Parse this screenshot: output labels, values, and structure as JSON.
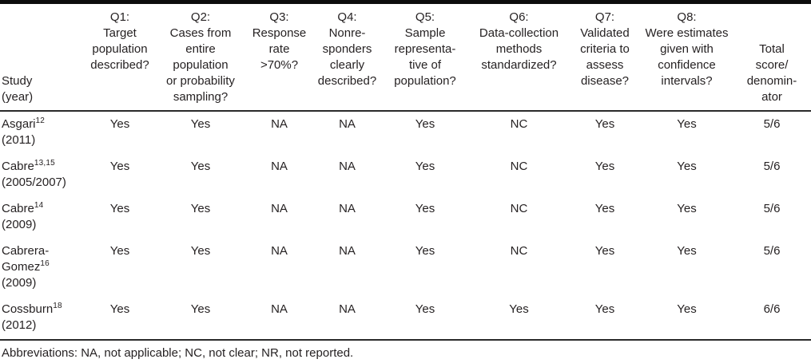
{
  "table": {
    "columns": [
      {
        "id": "study",
        "label": "Study\n(year)"
      },
      {
        "id": "q1",
        "label": "Q1:\nTarget\npopulation\ndescribed?"
      },
      {
        "id": "q2",
        "label": "Q2:\nCases from\nentire\npopulation\nor probability\nsampling?"
      },
      {
        "id": "q3",
        "label": "Q3:\nResponse\nrate\n>70%?"
      },
      {
        "id": "q4",
        "label": "Q4:\nNonre-\nsponders\nclearly\ndescribed?"
      },
      {
        "id": "q5",
        "label": "Q5:\nSample\nrepresenta-\ntive of\npopulation?"
      },
      {
        "id": "q6",
        "label": "Q6:\nData-collection\nmethods\nstandardized?"
      },
      {
        "id": "q7",
        "label": "Q7:\nValidated\ncriteria to\nassess\ndisease?"
      },
      {
        "id": "q8",
        "label": "Q8:\nWere estimates\ngiven with\nconfidence\nintervals?"
      },
      {
        "id": "total",
        "label": "Total\nscore/\ndenomin-\nator"
      }
    ],
    "rows": [
      {
        "name": "Asgari",
        "ref": "12",
        "year": "(2011)",
        "values": [
          "Yes",
          "Yes",
          "NA",
          "NA",
          "Yes",
          "NC",
          "Yes",
          "Yes",
          "5/6"
        ]
      },
      {
        "name": "Cabre",
        "ref": "13,15",
        "year": "(2005/2007)",
        "values": [
          "Yes",
          "Yes",
          "NA",
          "NA",
          "Yes",
          "NC",
          "Yes",
          "Yes",
          "5/6"
        ]
      },
      {
        "name": "Cabre",
        "ref": "14",
        "year": "(2009)",
        "values": [
          "Yes",
          "Yes",
          "NA",
          "NA",
          "Yes",
          "NC",
          "Yes",
          "Yes",
          "5/6"
        ]
      },
      {
        "name": "Cabrera-Gomez",
        "ref": "16",
        "year": "(2009)",
        "values": [
          "Yes",
          "Yes",
          "NA",
          "NA",
          "Yes",
          "NC",
          "Yes",
          "Yes",
          "5/6"
        ]
      },
      {
        "name": "Cossburn",
        "ref": "18",
        "year": "(2012)",
        "values": [
          "Yes",
          "Yes",
          "NA",
          "NA",
          "Yes",
          "Yes",
          "Yes",
          "Yes",
          "6/6"
        ]
      }
    ]
  },
  "footnote": "Abbreviations: NA, not applicable; NC, not clear; NR, not reported.",
  "colors": {
    "text": "#262223",
    "rule": "#2a2a2a",
    "background": "#ffffff"
  }
}
